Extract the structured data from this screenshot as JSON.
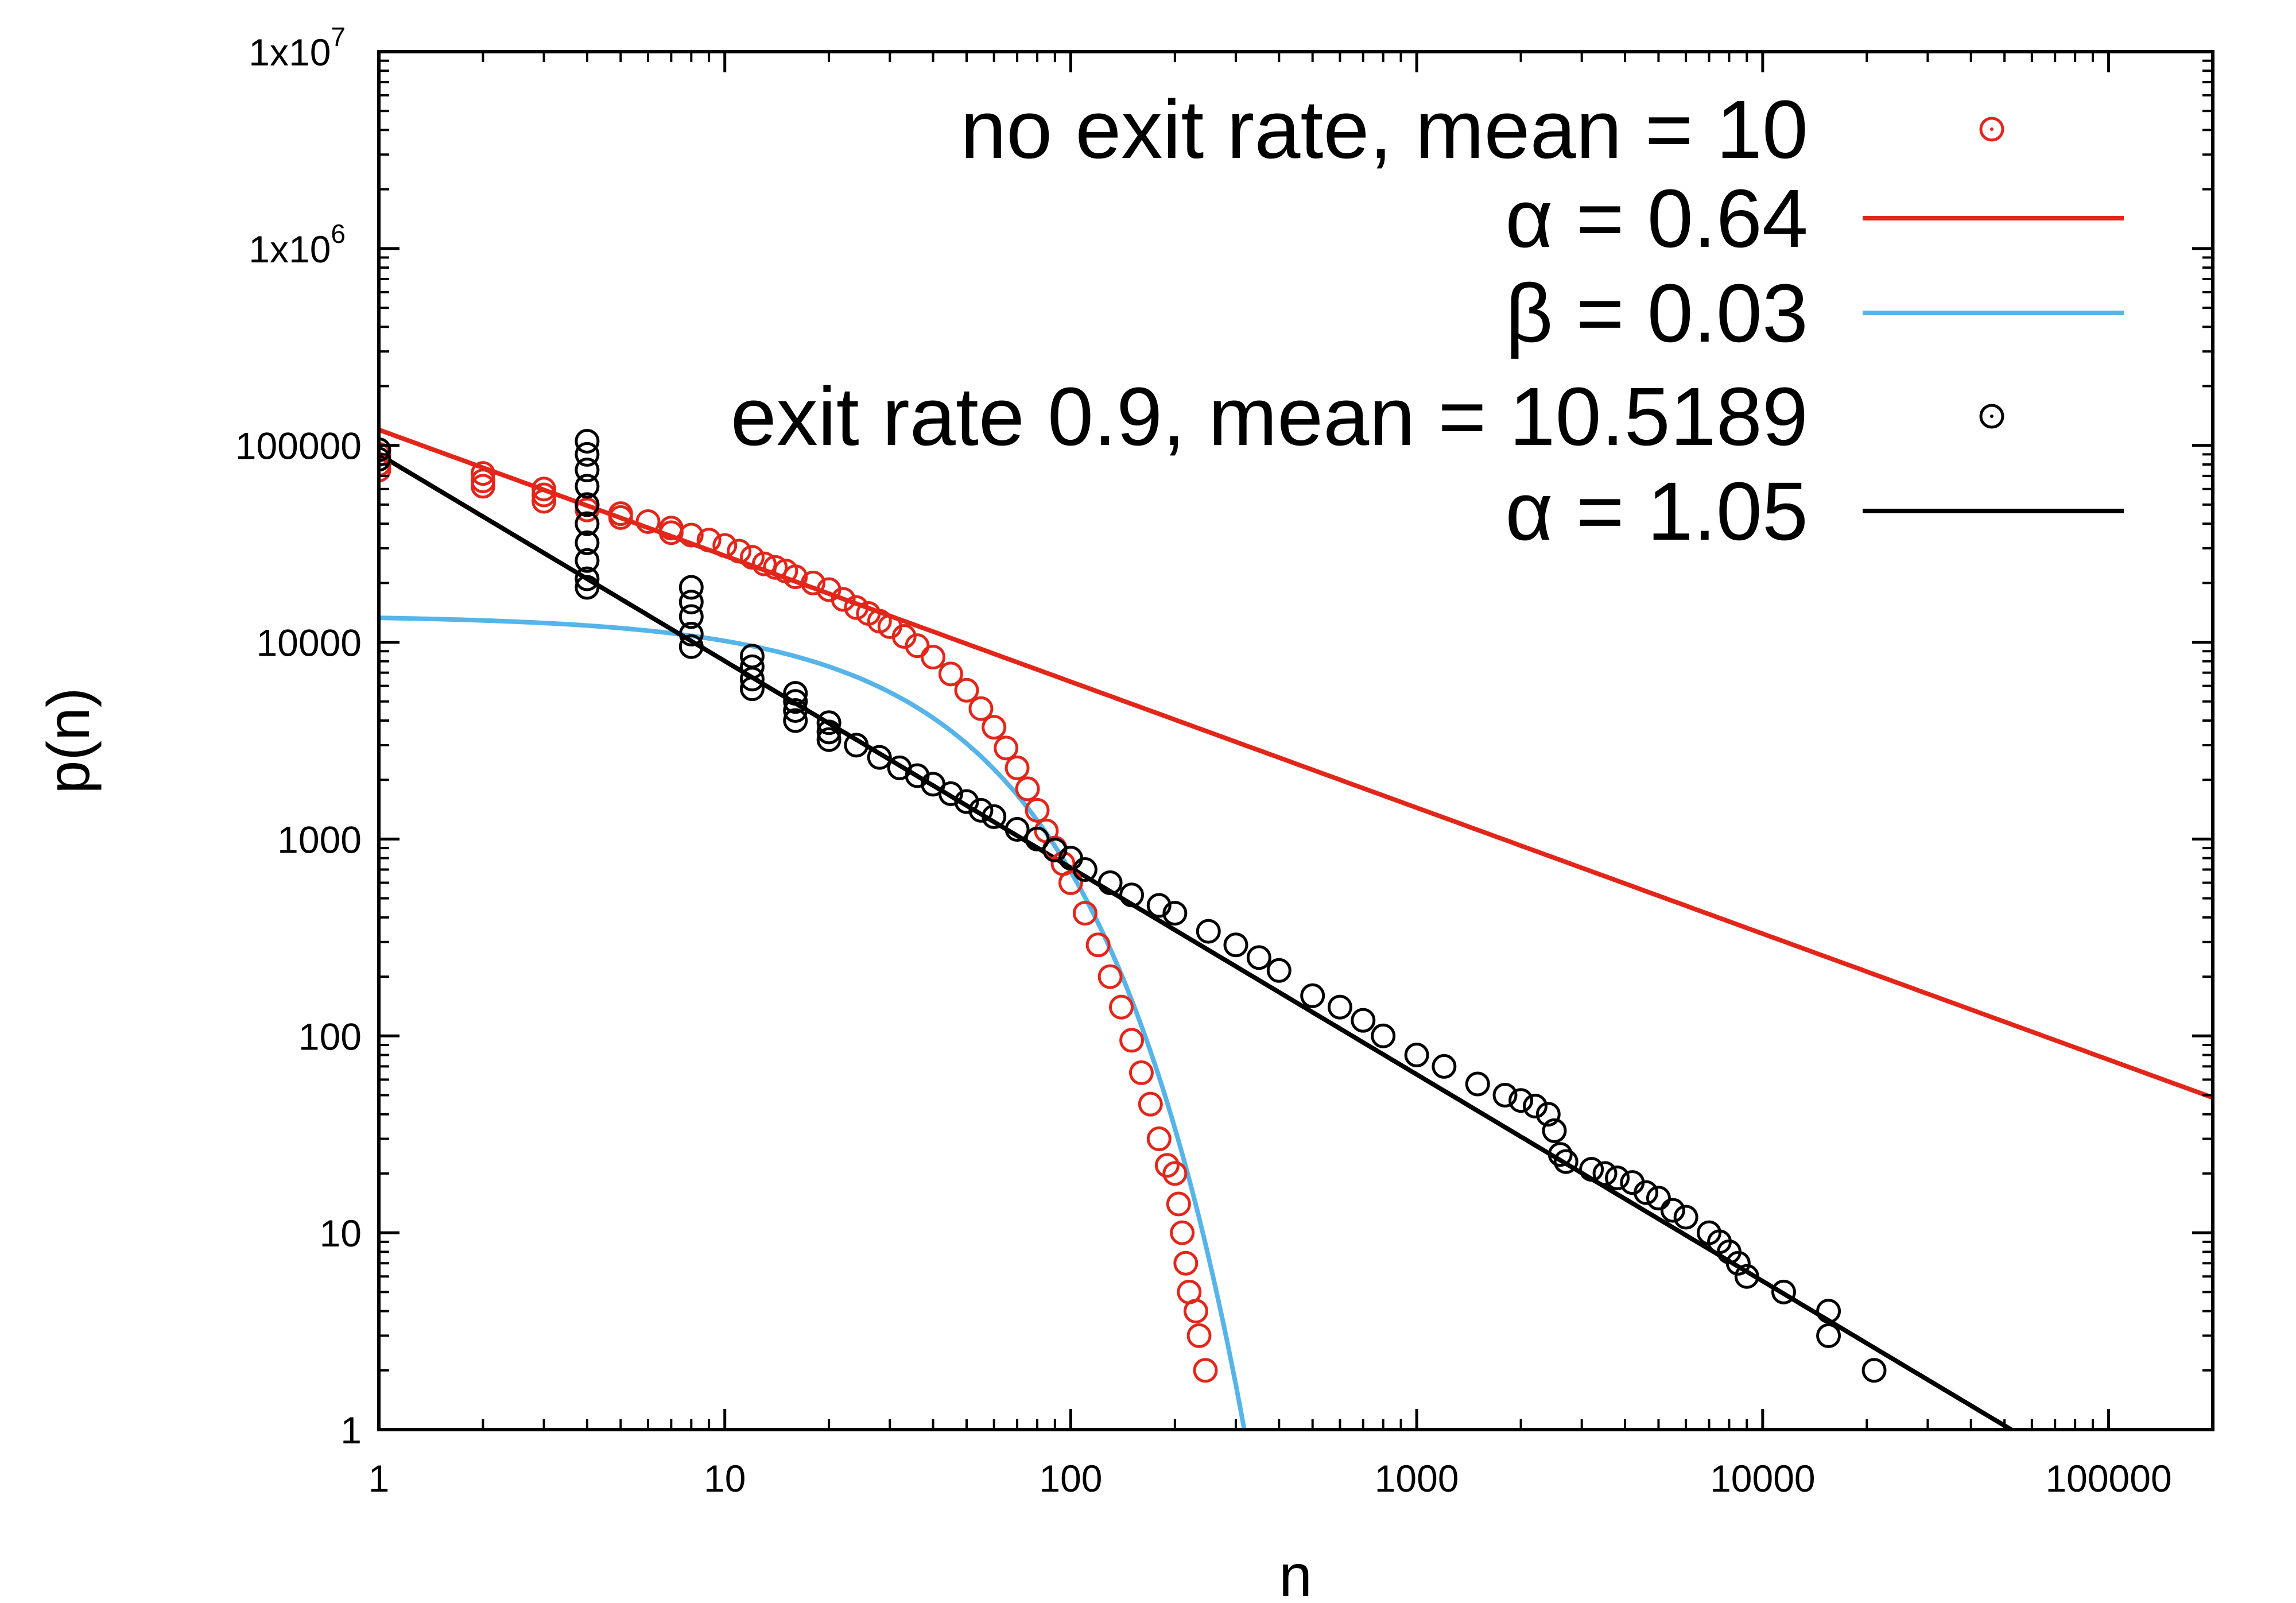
{
  "chart_data": {
    "type": "scatter",
    "title": "",
    "xlabel": "n",
    "ylabel": "p(n)",
    "xscale": "log",
    "yscale": "log",
    "xlim": [
      1,
      200000
    ],
    "ylim": [
      1,
      10000000
    ],
    "grid": false,
    "legend_position": "top-right",
    "x_ticks": [
      {
        "value": 1,
        "label": "1"
      },
      {
        "value": 10,
        "label": "10"
      },
      {
        "value": 100,
        "label": "100"
      },
      {
        "value": 1000,
        "label": "1000"
      },
      {
        "value": 10000,
        "label": "10000"
      },
      {
        "value": 100000,
        "label": "100000"
      }
    ],
    "y_ticks": [
      {
        "value": 1,
        "label": "1"
      },
      {
        "value": 10,
        "label": "10"
      },
      {
        "value": 100,
        "label": "100"
      },
      {
        "value": 1000,
        "label": "1000"
      },
      {
        "value": 10000,
        "label": "10000"
      },
      {
        "value": 100000,
        "label": "100000"
      },
      {
        "value": 1000000,
        "label": "1x10",
        "sup": "6"
      },
      {
        "value": 10000000,
        "label": "1x10",
        "sup": "7"
      }
    ],
    "series": [
      {
        "name": "no exit rate, mean = 10",
        "kind": "points",
        "color": "#e3261a",
        "points": [
          [
            1,
            90000
          ],
          [
            1,
            80000
          ],
          [
            1,
            75000
          ],
          [
            2,
            72000
          ],
          [
            2,
            66000
          ],
          [
            2,
            62000
          ],
          [
            3,
            60000
          ],
          [
            3,
            56000
          ],
          [
            3,
            52000
          ],
          [
            4,
            50000
          ],
          [
            4,
            47000
          ],
          [
            5,
            45000
          ],
          [
            5,
            43000
          ],
          [
            6,
            41000
          ],
          [
            7,
            38000
          ],
          [
            7,
            36000
          ],
          [
            8,
            35000
          ],
          [
            9,
            33000
          ],
          [
            10,
            31000
          ],
          [
            11,
            29000
          ],
          [
            12,
            27000
          ],
          [
            13,
            25000
          ],
          [
            14,
            24000
          ],
          [
            15,
            23000
          ],
          [
            16,
            21500
          ],
          [
            18,
            20000
          ],
          [
            20,
            18500
          ],
          [
            22,
            16500
          ],
          [
            24,
            15000
          ],
          [
            26,
            14000
          ],
          [
            28,
            12800
          ],
          [
            30,
            12000
          ],
          [
            33,
            10700
          ],
          [
            36,
            9600
          ],
          [
            40,
            8400
          ],
          [
            45,
            6900
          ],
          [
            50,
            5700
          ],
          [
            55,
            4600
          ],
          [
            60,
            3700
          ],
          [
            65,
            2900
          ],
          [
            70,
            2300
          ],
          [
            75,
            1800
          ],
          [
            80,
            1400
          ],
          [
            85,
            1100
          ],
          [
            90,
            900
          ],
          [
            95,
            750
          ],
          [
            100,
            600
          ],
          [
            110,
            420
          ],
          [
            120,
            290
          ],
          [
            130,
            200
          ],
          [
            140,
            140
          ],
          [
            150,
            95
          ],
          [
            160,
            65
          ],
          [
            170,
            45
          ],
          [
            180,
            30
          ],
          [
            190,
            22
          ],
          [
            200,
            20
          ],
          [
            205,
            14
          ],
          [
            210,
            10
          ],
          [
            215,
            7
          ],
          [
            220,
            5
          ],
          [
            230,
            4
          ],
          [
            235,
            3
          ],
          [
            245,
            2
          ]
        ]
      },
      {
        "name": "α = 0.64",
        "kind": "powerlaw",
        "color": "#e3261a",
        "amplitude": 120000,
        "exponent": 0.64
      },
      {
        "name": "β =  0.03",
        "kind": "exponential",
        "color": "#56b4e9",
        "amplitude": 13700,
        "rate": 0.03
      },
      {
        "name": "exit rate 0.9, mean = 10.5189",
        "kind": "points",
        "color": "#000000",
        "points": [
          [
            1,
            95000
          ],
          [
            1,
            85000
          ],
          [
            4,
            105000
          ],
          [
            4,
            90000
          ],
          [
            4,
            75000
          ],
          [
            4,
            62000
          ],
          [
            4,
            50000
          ],
          [
            4,
            40000
          ],
          [
            4,
            32000
          ],
          [
            4,
            26000
          ],
          [
            4,
            21000
          ],
          [
            4,
            19000
          ],
          [
            8,
            19000
          ],
          [
            8,
            16000
          ],
          [
            8,
            13500
          ],
          [
            8,
            11000
          ],
          [
            8,
            9500
          ],
          [
            12,
            8500
          ],
          [
            12,
            7500
          ],
          [
            12,
            6500
          ],
          [
            12,
            5800
          ],
          [
            16,
            5500
          ],
          [
            16,
            5000
          ],
          [
            16,
            4500
          ],
          [
            16,
            4000
          ],
          [
            20,
            3900
          ],
          [
            20,
            3500
          ],
          [
            20,
            3200
          ],
          [
            24,
            3000
          ],
          [
            28,
            2600
          ],
          [
            32,
            2300
          ],
          [
            36,
            2100
          ],
          [
            40,
            1900
          ],
          [
            45,
            1700
          ],
          [
            50,
            1550
          ],
          [
            55,
            1400
          ],
          [
            60,
            1300
          ],
          [
            70,
            1120
          ],
          [
            80,
            1000
          ],
          [
            90,
            880
          ],
          [
            100,
            800
          ],
          [
            110,
            700
          ],
          [
            130,
            600
          ],
          [
            150,
            520
          ],
          [
            180,
            460
          ],
          [
            200,
            420
          ],
          [
            250,
            340
          ],
          [
            300,
            290
          ],
          [
            350,
            250
          ],
          [
            400,
            215
          ],
          [
            500,
            160
          ],
          [
            600,
            140
          ],
          [
            700,
            120
          ],
          [
            800,
            100
          ],
          [
            1000,
            80
          ],
          [
            1200,
            70
          ],
          [
            1500,
            57
          ],
          [
            1800,
            50
          ],
          [
            2000,
            47
          ],
          [
            2200,
            44
          ],
          [
            2400,
            40
          ],
          [
            2500,
            33
          ],
          [
            2600,
            25
          ],
          [
            2700,
            23
          ],
          [
            3200,
            21
          ],
          [
            3500,
            20
          ],
          [
            3800,
            19
          ],
          [
            4200,
            18
          ],
          [
            4600,
            16
          ],
          [
            5000,
            15
          ],
          [
            5500,
            13
          ],
          [
            6000,
            12
          ],
          [
            7000,
            10
          ],
          [
            7500,
            9
          ],
          [
            8000,
            8
          ],
          [
            8500,
            7
          ],
          [
            9000,
            6
          ],
          [
            11500,
            5
          ],
          [
            15500,
            4
          ],
          [
            15500,
            3
          ],
          [
            21000,
            2
          ]
        ]
      },
      {
        "name": "α = 1.05",
        "kind": "powerlaw",
        "color": "#000000",
        "amplitude": 90000,
        "exponent": 1.05
      }
    ]
  }
}
